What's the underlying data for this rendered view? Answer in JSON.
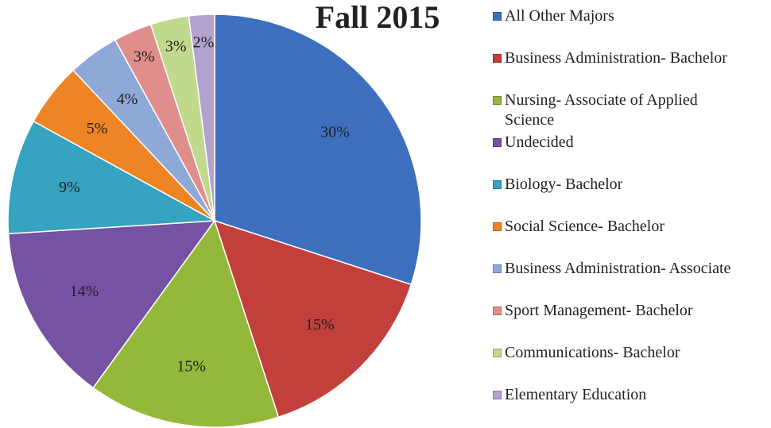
{
  "chart_data": {
    "type": "pie",
    "title": "Fall 2015",
    "categories": [
      "All Other Majors",
      "Business Administration- Bachelor",
      "Nursing- Associate of Applied Science",
      "Undecided",
      "Biology- Bachelor",
      "Social Science- Bachelor",
      "Business Administration- Associate",
      "Sport Management- Bachelor",
      "Communications- Bachelor",
      "Elementary Education"
    ],
    "values": [
      30,
      15,
      15,
      14,
      9,
      5,
      4,
      3,
      3,
      2
    ],
    "value_labels": [
      "30%",
      "15%",
      "15%",
      "14%",
      "9%",
      "5%",
      "4%",
      "3%",
      "3%",
      "2%"
    ],
    "colors": [
      "#3d6fbe",
      "#c33f3b",
      "#93b83a",
      "#7652a3",
      "#36a3c0",
      "#ee8424",
      "#8ea8d8",
      "#e08e8c",
      "#c0d98c",
      "#b2a2d0"
    ],
    "legend": "right"
  }
}
